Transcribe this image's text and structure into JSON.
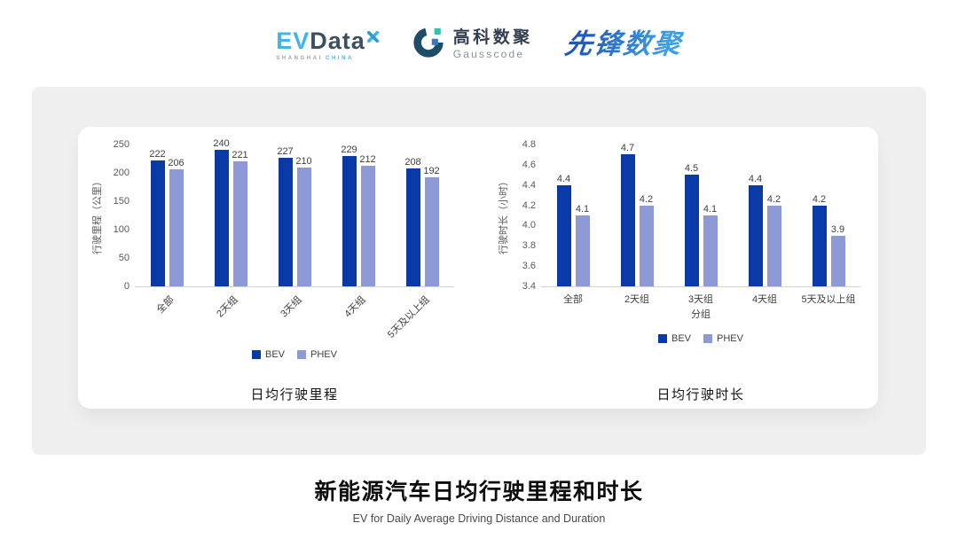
{
  "header": {
    "evdata": {
      "ev": "EV",
      "data": "Data",
      "sub_shanghai": "SHANGHAI",
      "sub_china": "CHINA"
    },
    "gausscode": {
      "cn": "高科数聚",
      "en": "Gausscode"
    },
    "xianfeng": {
      "cn": "先锋数聚"
    }
  },
  "footer": {
    "title_cn": "新能源汽车日均行驶里程和时长",
    "title_en": "EV for Daily Average Driving Distance and Duration"
  },
  "colors": {
    "bev": "#0a3aa6",
    "phev": "#8d9ad5",
    "axis_text": "#595959",
    "label_text": "#404040",
    "card_bg": "#f0f0f1"
  },
  "chart_data": [
    {
      "type": "bar",
      "title": "日均行驶里程",
      "categories": [
        "全部",
        "2天组",
        "3天组",
        "4天组",
        "5天及以上组"
      ],
      "series": [
        {
          "name": "BEV",
          "color": "#0a3aa6",
          "values": [
            222,
            240,
            227,
            229,
            208
          ]
        },
        {
          "name": "PHEV",
          "color": "#8d9ad5",
          "values": [
            206,
            221,
            210,
            212,
            192
          ]
        }
      ],
      "xlabel": "",
      "ylabel": "行驶里程（公里）",
      "ylim": [
        0,
        250
      ],
      "ytick_step": 50,
      "ytick_decimals": 0,
      "value_decimals": 0,
      "x_label_rotation": -45,
      "grid": false,
      "legend_position": "bottom"
    },
    {
      "type": "bar",
      "title": "日均行驶时长",
      "categories": [
        "全部",
        "2天组",
        "3天组",
        "4天组",
        "5天及以上组"
      ],
      "series": [
        {
          "name": "BEV",
          "color": "#0a3aa6",
          "values": [
            4.4,
            4.7,
            4.5,
            4.4,
            4.2
          ]
        },
        {
          "name": "PHEV",
          "color": "#8d9ad5",
          "values": [
            4.1,
            4.2,
            4.1,
            4.2,
            3.9
          ]
        }
      ],
      "xlabel": "分组",
      "ylabel": "行驶时长（小时）",
      "ylim": [
        3.4,
        4.8
      ],
      "ytick_step": 0.2,
      "ytick_decimals": 1,
      "value_decimals": 1,
      "x_label_rotation": 0,
      "grid": false,
      "legend_position": "bottom"
    }
  ]
}
